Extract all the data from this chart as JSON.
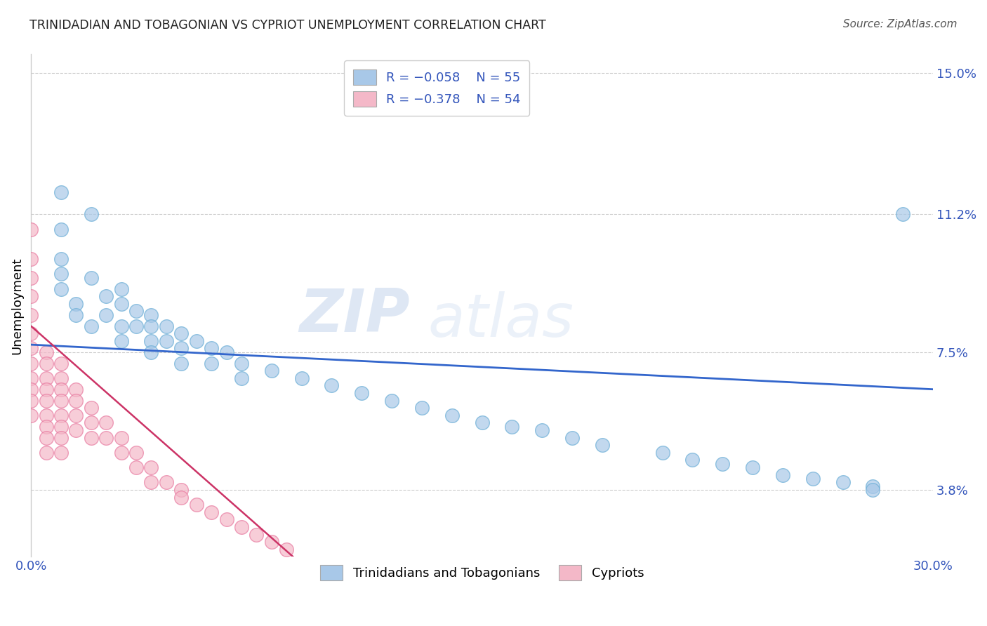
{
  "title": "TRINIDADIAN AND TOBAGONIAN VS CYPRIOT UNEMPLOYMENT CORRELATION CHART",
  "source": "Source: ZipAtlas.com",
  "ylabel_label": "Unemployment",
  "legend_line1_r": "R = -0.058",
  "legend_line1_n": "N = 55",
  "legend_line2_r": "R = -0.378",
  "legend_line2_n": "N = 54",
  "legend_bottom1": "Trinidadians and Tobagonians",
  "legend_bottom2": "Cypriots",
  "blue_color": "#a8c8e8",
  "blue_edge_color": "#6baed6",
  "pink_color": "#f4b8c8",
  "pink_edge_color": "#e87aa0",
  "blue_line_color": "#3366cc",
  "pink_line_color": "#cc3366",
  "grid_color": "#cccccc",
  "text_color": "#3355bb",
  "title_color": "#222222",
  "watermark_zip": "ZIP",
  "watermark_atlas": "atlas",
  "blue_scatter_x": [
    0.01,
    0.01,
    0.01,
    0.01,
    0.01,
    0.015,
    0.015,
    0.02,
    0.02,
    0.02,
    0.025,
    0.025,
    0.03,
    0.03,
    0.03,
    0.03,
    0.035,
    0.035,
    0.04,
    0.04,
    0.04,
    0.04,
    0.045,
    0.045,
    0.05,
    0.05,
    0.05,
    0.055,
    0.06,
    0.06,
    0.065,
    0.07,
    0.07,
    0.08,
    0.09,
    0.1,
    0.11,
    0.12,
    0.13,
    0.14,
    0.15,
    0.16,
    0.17,
    0.18,
    0.19,
    0.21,
    0.22,
    0.23,
    0.24,
    0.25,
    0.26,
    0.27,
    0.28,
    0.28,
    0.29
  ],
  "blue_scatter_y": [
    0.118,
    0.108,
    0.1,
    0.096,
    0.092,
    0.088,
    0.085,
    0.112,
    0.095,
    0.082,
    0.09,
    0.085,
    0.092,
    0.088,
    0.082,
    0.078,
    0.086,
    0.082,
    0.085,
    0.082,
    0.078,
    0.075,
    0.082,
    0.078,
    0.08,
    0.076,
    0.072,
    0.078,
    0.076,
    0.072,
    0.075,
    0.072,
    0.068,
    0.07,
    0.068,
    0.066,
    0.064,
    0.062,
    0.06,
    0.058,
    0.056,
    0.055,
    0.054,
    0.052,
    0.05,
    0.048,
    0.046,
    0.045,
    0.044,
    0.042,
    0.041,
    0.04,
    0.039,
    0.038,
    0.112
  ],
  "pink_scatter_x": [
    0.0,
    0.0,
    0.0,
    0.0,
    0.0,
    0.0,
    0.0,
    0.0,
    0.0,
    0.0,
    0.0,
    0.0,
    0.005,
    0.005,
    0.005,
    0.005,
    0.005,
    0.005,
    0.005,
    0.005,
    0.005,
    0.01,
    0.01,
    0.01,
    0.01,
    0.01,
    0.01,
    0.01,
    0.01,
    0.015,
    0.015,
    0.015,
    0.015,
    0.02,
    0.02,
    0.02,
    0.025,
    0.025,
    0.03,
    0.03,
    0.035,
    0.035,
    0.04,
    0.04,
    0.045,
    0.05,
    0.05,
    0.055,
    0.06,
    0.065,
    0.07,
    0.075,
    0.08,
    0.085
  ],
  "pink_scatter_y": [
    0.108,
    0.1,
    0.095,
    0.09,
    0.085,
    0.08,
    0.076,
    0.072,
    0.068,
    0.065,
    0.062,
    0.058,
    0.075,
    0.072,
    0.068,
    0.065,
    0.062,
    0.058,
    0.055,
    0.052,
    0.048,
    0.072,
    0.068,
    0.065,
    0.062,
    0.058,
    0.055,
    0.052,
    0.048,
    0.065,
    0.062,
    0.058,
    0.054,
    0.06,
    0.056,
    0.052,
    0.056,
    0.052,
    0.052,
    0.048,
    0.048,
    0.044,
    0.044,
    0.04,
    0.04,
    0.038,
    0.036,
    0.034,
    0.032,
    0.03,
    0.028,
    0.026,
    0.024,
    0.022
  ],
  "blue_trend_x": [
    0.0,
    0.3
  ],
  "blue_trend_y": [
    0.077,
    0.065
  ],
  "pink_trend_x": [
    0.0,
    0.09
  ],
  "pink_trend_y": [
    0.082,
    0.018
  ],
  "xlim": [
    0.0,
    0.3
  ],
  "ylim": [
    0.02,
    0.155
  ],
  "yticks": [
    0.038,
    0.075,
    0.112,
    0.15
  ],
  "yticklabels": [
    "3.8%",
    "7.5%",
    "11.2%",
    "15.0%"
  ],
  "xticks": [
    0.0,
    0.3
  ],
  "xticklabels": [
    "0.0%",
    "30.0%"
  ],
  "figsize": [
    14.06,
    8.92
  ],
  "dpi": 100
}
